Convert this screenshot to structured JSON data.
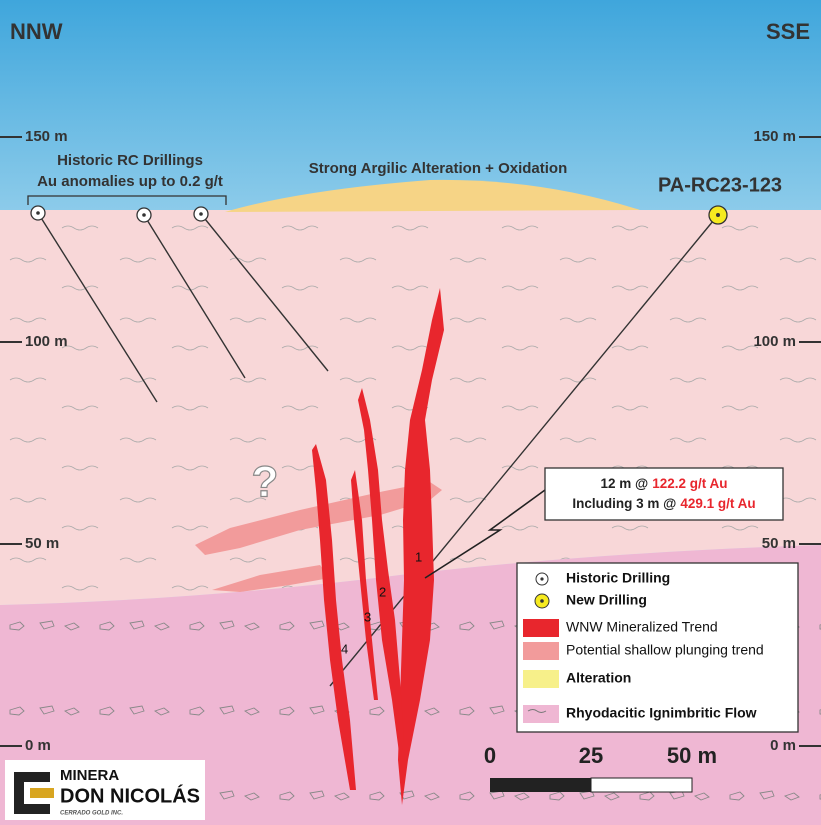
{
  "header": {
    "left": "NNW",
    "right": "SSE"
  },
  "elevations": {
    "left": [
      "150 m",
      "100 m",
      "50 m",
      "0 m"
    ],
    "right": [
      "150 m",
      "100 m",
      "50 m",
      "0 m"
    ]
  },
  "annotations": {
    "historic_title": "Historic RC Drillings",
    "historic_note": "Au anomalies up to 0.2 g/t",
    "alteration": "Strong Argilic Alteration + Oxidation",
    "new_hole": "PA-RC23-123",
    "question": "?"
  },
  "intercept": {
    "line1": {
      "text": "12 m @",
      "grade": "122.2 g/t Au"
    },
    "line2": {
      "text": "Including 3 m @",
      "grade": "429.1 g/t Au"
    }
  },
  "vein_labels": [
    "1",
    "2",
    "3",
    "4"
  ],
  "legend": [
    "Historic Drilling",
    "New Drilling",
    "WNW Mineralized Trend",
    "Potential shallow plunging trend",
    "Alteration",
    "Rhyodacitic Ignimbritic Flow"
  ],
  "scale": [
    "0",
    "25",
    "50 m"
  ],
  "logo": {
    "line1": "MINERA",
    "line2": "DON NICOLÁS",
    "line3": "CERRADO GOLD INC."
  }
}
